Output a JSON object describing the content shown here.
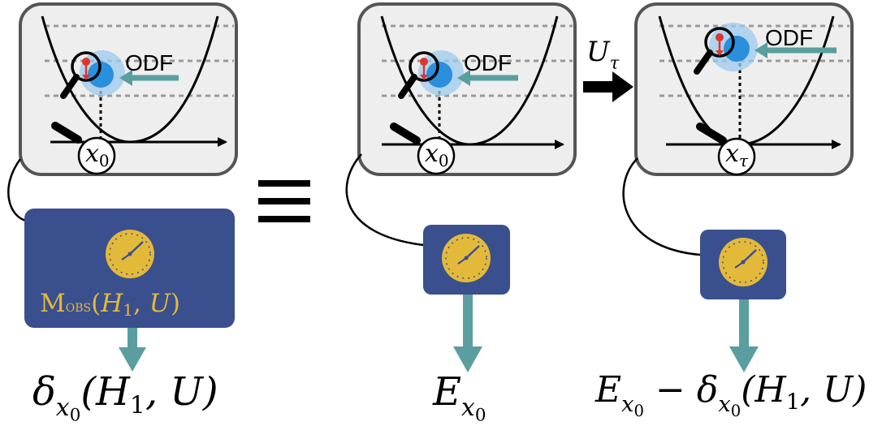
{
  "panels": [
    {
      "id": "panel-1",
      "odf_label": "ODF",
      "position_label": "x",
      "position_sub": "0"
    },
    {
      "id": "panel-2",
      "odf_label": "ODF",
      "position_label": "x",
      "position_sub": "0"
    },
    {
      "id": "panel-3",
      "odf_label": "ODF",
      "position_label": "x",
      "position_sub": "τ"
    }
  ],
  "equivalence_symbol": "≡",
  "evolution": {
    "symbol": "U",
    "subscript": "τ"
  },
  "device_label": {
    "blackboard": "M",
    "obs": "OBS",
    "args_open": "(",
    "h": "H",
    "h_sub": "1",
    "sep": ", ",
    "u": "U",
    "args_close": ")"
  },
  "outputs": {
    "left": {
      "delta": "δ",
      "x": "x",
      "x_sub": "0",
      "args": "(H",
      "h_sub": "1",
      "rest": ", U)"
    },
    "middle": {
      "e": "E",
      "x": "x",
      "x_sub": "0"
    },
    "right": {
      "e": "E",
      "x": "x",
      "x_sub": "0",
      "minus": " − ",
      "delta": "δ",
      "args": "(H",
      "h_sub": "1",
      "rest": ", U)"
    }
  },
  "colors": {
    "panel_fill": "#eeeeee",
    "panel_border": "#555555",
    "device_fill": "#3a4f8e",
    "clock_fill": "#e3b93a",
    "arrow_teal": "#5b9ea0",
    "particle_blue": "#2a8fdc",
    "particle_glow": "#9cc9ec",
    "spin_red": "#e0342b",
    "label_gold": "#e3b93a"
  },
  "icons": [
    "magnifier-icon",
    "clock-icon",
    "probe-icon"
  ]
}
